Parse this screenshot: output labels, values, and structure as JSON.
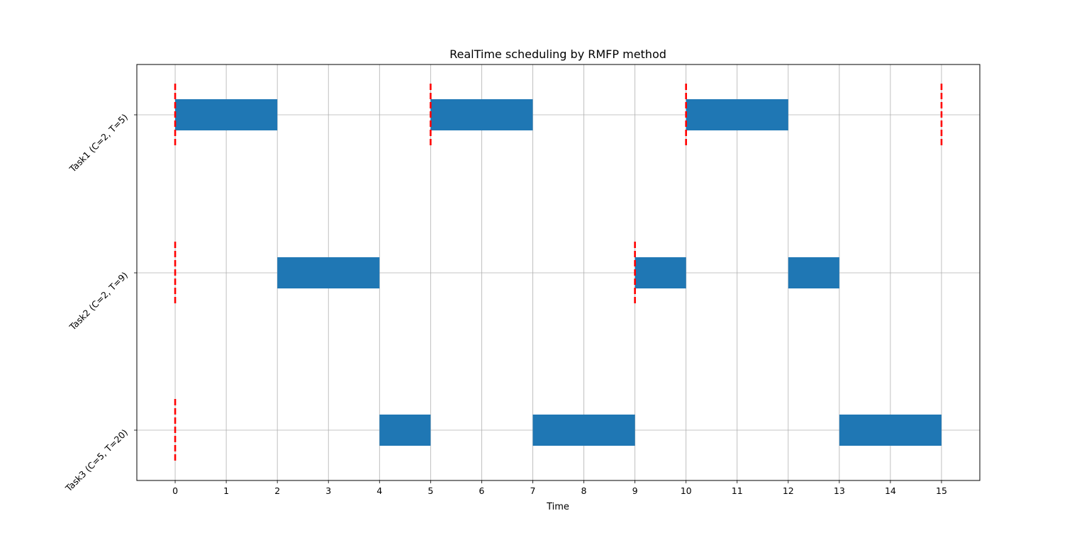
{
  "chart_data": {
    "type": "gantt",
    "title": "RealTime scheduling by RMFP method",
    "xlabel": "Time",
    "ylabel": "",
    "xlim": [
      -0.75,
      15.75
    ],
    "xticks": [
      0,
      1,
      2,
      3,
      4,
      5,
      6,
      7,
      8,
      9,
      10,
      11,
      12,
      13,
      14,
      15
    ],
    "grid": true,
    "bar_color": "#1f77b4",
    "release_marker_color": "#ff0000",
    "tasks": [
      {
        "name": "Task1 (C=2, T=5)",
        "C": 2,
        "T": 5,
        "executions": [
          [
            0,
            2
          ],
          [
            5,
            7
          ],
          [
            10,
            12
          ]
        ],
        "releases": [
          0,
          5,
          10,
          15
        ]
      },
      {
        "name": "Task2 (C=2, T=9)",
        "C": 2,
        "T": 9,
        "executions": [
          [
            2,
            4
          ],
          [
            9,
            10
          ],
          [
            12,
            13
          ]
        ],
        "releases": [
          0,
          9
        ]
      },
      {
        "name": "Task3 (C=5, T=20)",
        "C": 5,
        "T": 20,
        "executions": [
          [
            4,
            5
          ],
          [
            7,
            9
          ],
          [
            13,
            15
          ]
        ],
        "releases": [
          0
        ]
      }
    ]
  }
}
